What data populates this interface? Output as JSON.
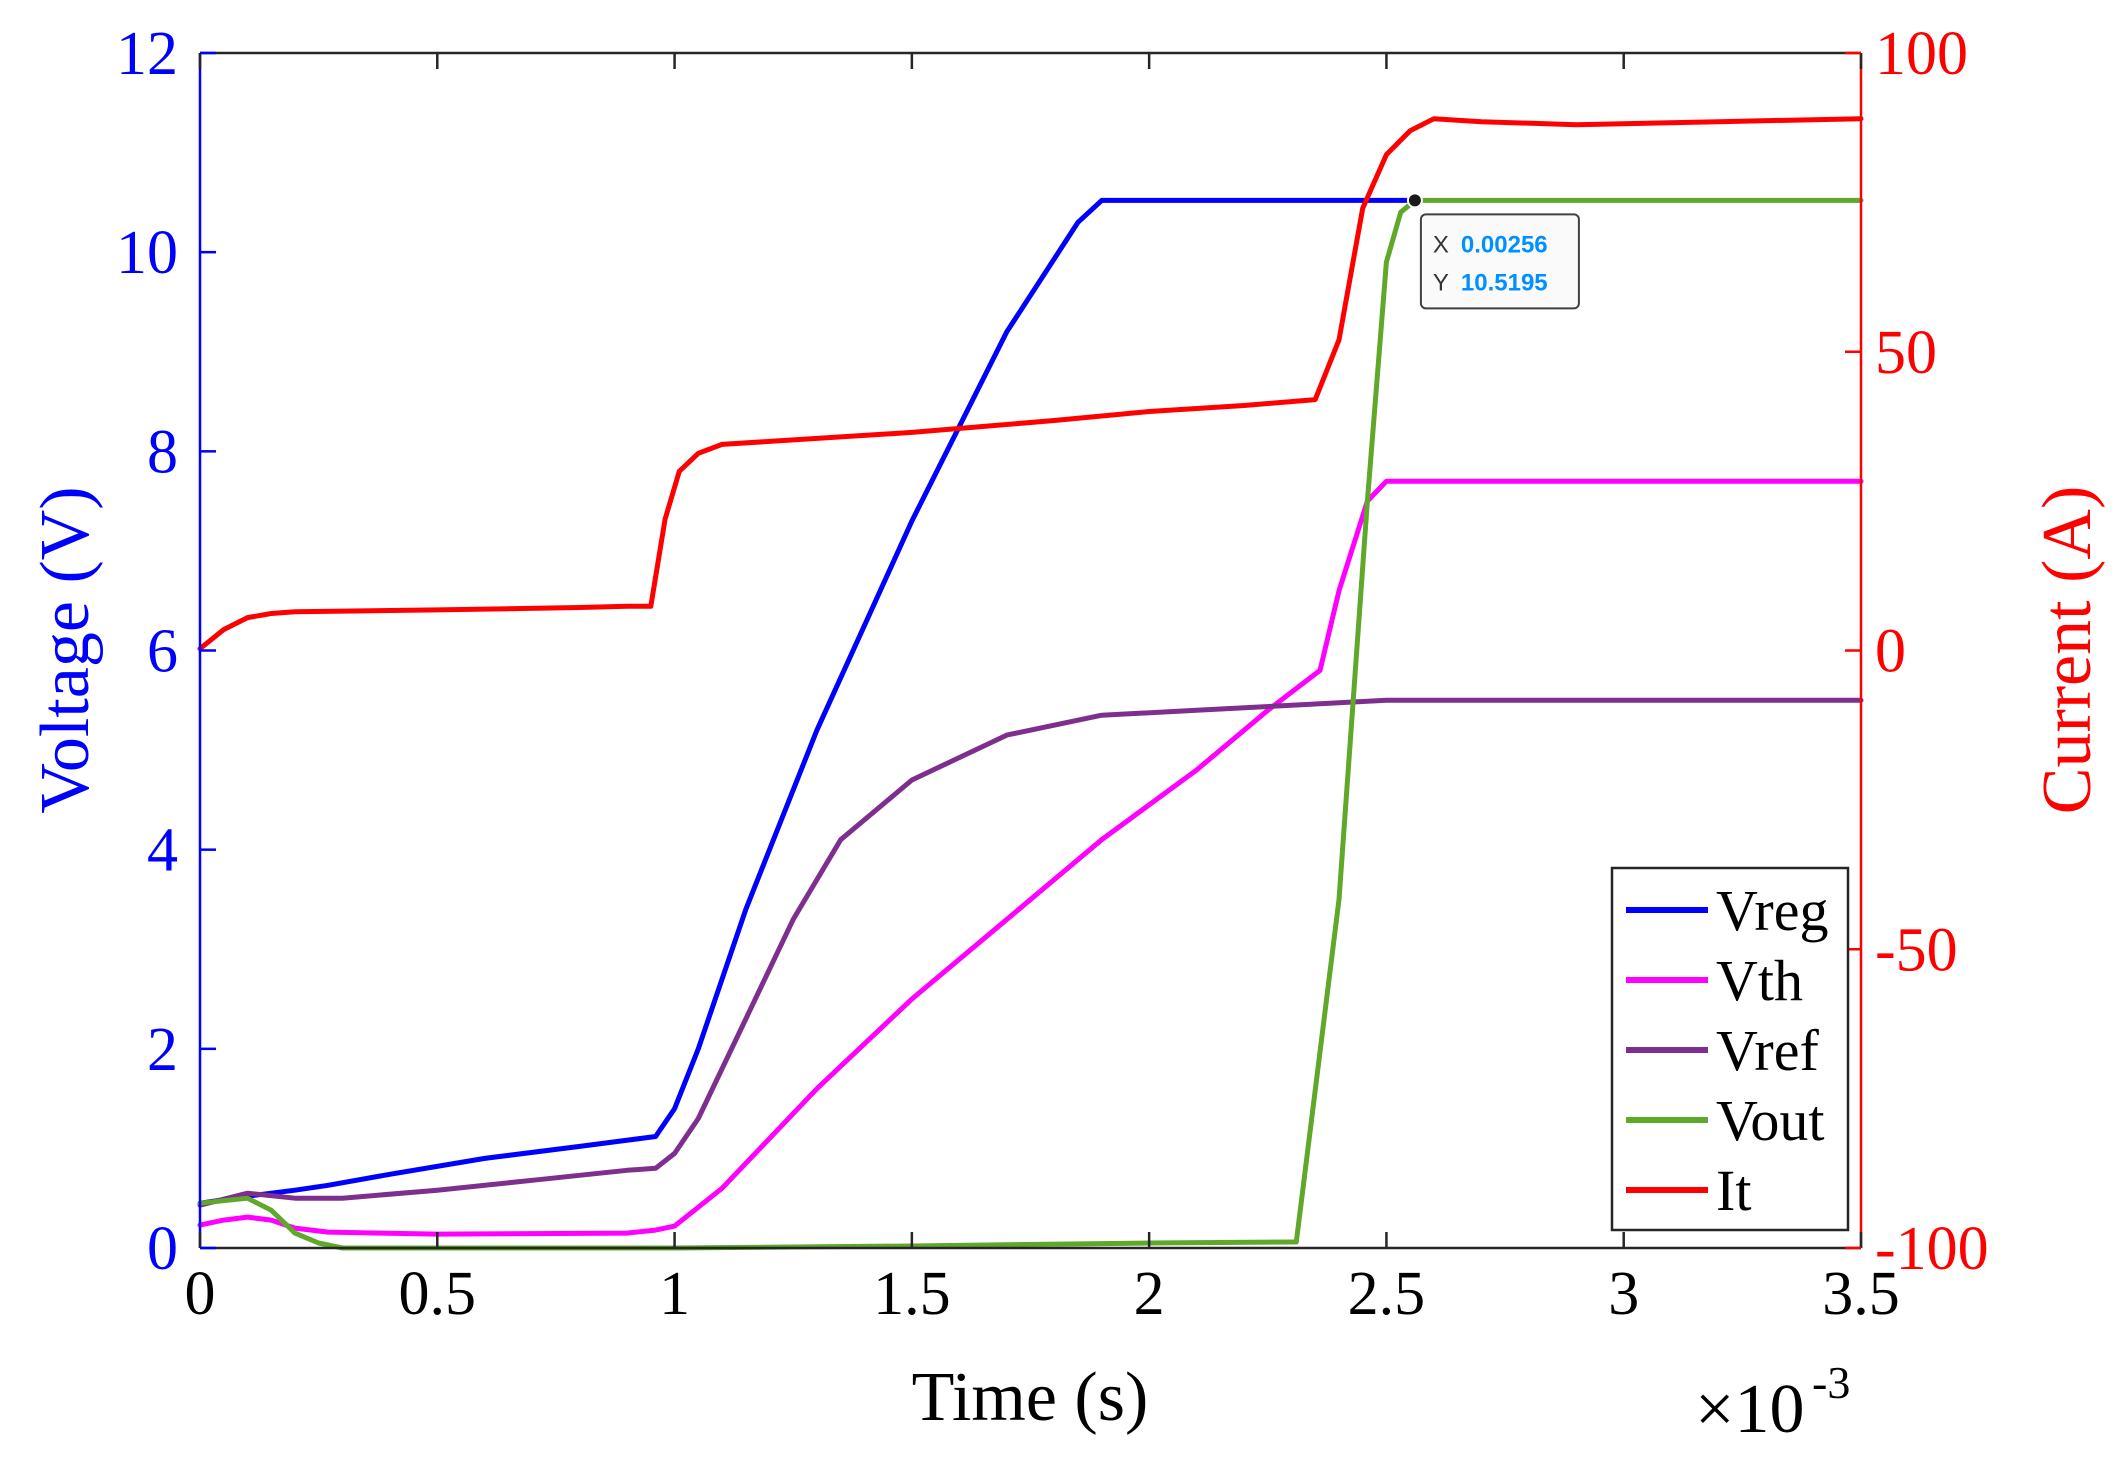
{
  "chart_data": {
    "type": "line",
    "title": "",
    "xlabel": "Time (s)",
    "ylabel": "Voltage (V)",
    "ylabel_right": "Current (A)",
    "x_exponent_label": "×10",
    "x_exponent_power": "-3",
    "xlim": [
      0,
      3.5
    ],
    "ylim": [
      0,
      12
    ],
    "ylim_right": [
      -100,
      100
    ],
    "x_ticks": [
      0,
      0.5,
      1,
      1.5,
      2,
      2.5,
      3,
      3.5
    ],
    "x_tick_labels": [
      "0",
      "0.5",
      "1",
      "1.5",
      "2",
      "2.5",
      "3",
      "3.5"
    ],
    "y_ticks": [
      0,
      2,
      4,
      6,
      8,
      10,
      12
    ],
    "y_tick_labels": [
      "0",
      "2",
      "4",
      "6",
      "8",
      "10",
      "12"
    ],
    "y_right_ticks": [
      -100,
      -50,
      0,
      50,
      100
    ],
    "y_right_tick_labels": [
      "-100",
      "-50",
      "0",
      "50",
      "100"
    ],
    "grid": false,
    "legend_position": "bottom-right",
    "series": [
      {
        "name": "Vreg",
        "axis": "left",
        "color": "#0000ff",
        "x": [
          0,
          0.1,
          0.2,
          0.27,
          0.4,
          0.6,
          0.8,
          0.96,
          1.0,
          1.05,
          1.15,
          1.3,
          1.5,
          1.7,
          1.85,
          1.9,
          2.0,
          2.3,
          2.56
        ],
        "y": [
          0.45,
          0.52,
          0.58,
          0.63,
          0.74,
          0.9,
          1.02,
          1.12,
          1.4,
          2.0,
          3.4,
          5.2,
          7.3,
          9.2,
          10.3,
          10.52,
          10.52,
          10.52,
          10.52
        ]
      },
      {
        "name": "Vth",
        "axis": "left",
        "color": "#ff00ff",
        "x": [
          0,
          0.05,
          0.1,
          0.15,
          0.2,
          0.27,
          0.5,
          0.9,
          0.96,
          1.0,
          1.1,
          1.3,
          1.5,
          1.7,
          1.9,
          2.1,
          2.25,
          2.36,
          2.4,
          2.46,
          2.5,
          3.0,
          3.5
        ],
        "y": [
          0.23,
          0.28,
          0.31,
          0.28,
          0.2,
          0.16,
          0.14,
          0.15,
          0.18,
          0.22,
          0.6,
          1.6,
          2.5,
          3.3,
          4.1,
          4.8,
          5.4,
          5.8,
          6.6,
          7.5,
          7.7,
          7.7,
          7.7
        ]
      },
      {
        "name": "Vref",
        "axis": "left",
        "color": "#7e2f8e",
        "x": [
          0,
          0.1,
          0.2,
          0.3,
          0.5,
          0.7,
          0.9,
          0.96,
          1.0,
          1.05,
          1.15,
          1.25,
          1.35,
          1.5,
          1.7,
          1.9,
          2.1,
          2.3,
          2.5,
          3.0,
          3.5
        ],
        "y": [
          0.43,
          0.55,
          0.5,
          0.5,
          0.58,
          0.68,
          0.78,
          0.8,
          0.95,
          1.3,
          2.3,
          3.3,
          4.1,
          4.7,
          5.15,
          5.35,
          5.4,
          5.45,
          5.5,
          5.5,
          5.5
        ]
      },
      {
        "name": "Vout",
        "axis": "left",
        "color": "#5fa82a",
        "x": [
          0,
          0.1,
          0.15,
          0.2,
          0.25,
          0.3,
          0.5,
          1.0,
          1.5,
          2.0,
          2.3,
          2.31,
          2.4,
          2.46,
          2.5,
          2.53,
          2.56,
          3.0,
          3.5
        ],
        "y": [
          0.45,
          0.5,
          0.38,
          0.15,
          0.05,
          0.0,
          0.0,
          0.0,
          0.02,
          0.05,
          0.06,
          0.06,
          3.5,
          7.5,
          9.9,
          10.4,
          10.52,
          10.52,
          10.52
        ]
      },
      {
        "name": "It",
        "axis": "right",
        "color": "#ff0000",
        "x": [
          0,
          0.05,
          0.1,
          0.15,
          0.2,
          0.5,
          0.8,
          0.9,
          0.95,
          0.98,
          1.01,
          1.05,
          1.1,
          1.3,
          1.5,
          1.8,
          2.0,
          2.2,
          2.35,
          2.4,
          2.45,
          2.5,
          2.55,
          2.6,
          2.7,
          2.9,
          3.2,
          3.5
        ],
        "y": [
          0.3,
          3.5,
          5.5,
          6.2,
          6.5,
          6.8,
          7.2,
          7.4,
          7.4,
          22,
          30,
          33,
          34.5,
          35.5,
          36.5,
          38.5,
          40,
          41,
          42,
          52,
          74,
          83,
          87,
          89,
          88.5,
          88,
          88.5,
          89
        ]
      }
    ],
    "annotations": [
      {
        "type": "datatip",
        "x": 2.56,
        "y": 10.52,
        "x_label": "X",
        "x_text": "0.00256",
        "y_label": "Y",
        "y_text": "10.5195"
      }
    ]
  }
}
